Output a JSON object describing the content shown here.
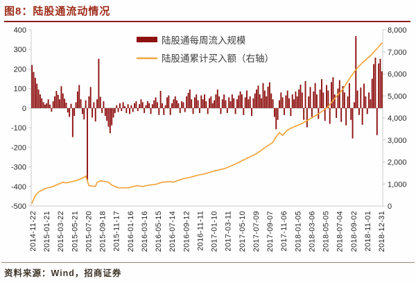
{
  "page": {
    "title": "图8：陆股通流动情况",
    "source_note": "资料来源：Wind，招商证券"
  },
  "legend": {
    "bar_label": "陆股通每周流入规模",
    "line_label": "陆股通累计买入额（右轴）"
  },
  "colors": {
    "bar": "#8e1010",
    "line": "#f2a43c",
    "title": "#9e2b18",
    "rule": "#8d1d12",
    "axis_text": "#262626",
    "axis_line": "#c9c9c9",
    "zero_line": "#a8a8a8",
    "legend_text": "#3d3d3d",
    "footer_text": "#3f3428"
  },
  "chart_data": {
    "type": "bar",
    "combo": "bar + line (dual axis)",
    "title": "陆股通流动情况",
    "left_axis": {
      "min": -500,
      "max": 400,
      "tick_step": 100,
      "tick_labels": [
        "400",
        "300",
        "200",
        "100",
        "0",
        "-100",
        "-200",
        "-300",
        "-400",
        "-500"
      ]
    },
    "right_axis": {
      "min": 0,
      "max": 8000,
      "tick_step": 1000,
      "tick_labels": [
        "8,000",
        "7,000",
        "6,000",
        "5,000",
        "4,000",
        "3,000",
        "2,000",
        "1,000",
        "0"
      ]
    },
    "x_tick_labels": [
      "2014-11-22",
      "2015-01-21",
      "2015-03-22",
      "2015-05-21",
      "2015-07-20",
      "2015-09-18",
      "2015-11-17",
      "2016-01-16",
      "2016-03-16",
      "2016-05-15",
      "2016-07-14",
      "2016-09-12",
      "2016-11-11",
      "2017-01-10",
      "2017-03-11",
      "2017-05-10",
      "2017-07-09",
      "2017-09-07",
      "2017-11-06",
      "2018-01-05",
      "2018-03-06",
      "2018-05-05",
      "2018-07-04",
      "2018-09-02",
      "2018-11-01",
      "2018-12-31"
    ],
    "series": [
      {
        "name": "陆股通每周流入规模",
        "type": "bar",
        "axis": "left",
        "weekly_values": [
          220,
          185,
          155,
          125,
          95,
          70,
          50,
          30,
          18,
          25,
          45,
          18,
          -18,
          35,
          60,
          88,
          68,
          45,
          112,
          75,
          48,
          28,
          -22,
          -45,
          22,
          -148,
          -40,
          30,
          85,
          118,
          45,
          -30,
          -58,
          40,
          -368,
          60,
          108,
          -48,
          30,
          -68,
          45,
          252,
          58,
          -25,
          35,
          -40,
          -65,
          -95,
          -128,
          -88,
          -48,
          -25,
          15,
          -20,
          25,
          -15,
          30,
          10,
          -25,
          20,
          -30,
          15,
          -20,
          25,
          35,
          -15,
          20,
          45,
          30,
          -25,
          15,
          35,
          25,
          -30,
          20,
          40,
          55,
          30,
          -35,
          88,
          25,
          -35,
          15,
          55,
          65,
          -35,
          25,
          45,
          60,
          40,
          25,
          -25,
          35,
          30,
          -20,
          60,
          78,
          95,
          45,
          -30,
          55,
          70,
          40,
          -25,
          65,
          45,
          70,
          35,
          -30,
          50,
          60,
          25,
          40,
          70,
          95,
          60,
          -30,
          45,
          70,
          40,
          -25,
          55,
          35,
          70,
          50,
          -30,
          45,
          65,
          85,
          70,
          -35,
          55,
          90,
          45,
          60,
          -40,
          50,
          75,
          95,
          115,
          70,
          50,
          128,
          90,
          60,
          110,
          132,
          75,
          45,
          -45,
          -108,
          -60,
          40,
          80,
          55,
          -35,
          65,
          90,
          50,
          -40,
          70,
          45,
          85,
          60,
          95,
          120,
          80,
          -60,
          138,
          -98,
          60,
          108,
          -45,
          85,
          128,
          70,
          -55,
          95,
          148,
          80,
          -65,
          118,
          90,
          -80,
          133,
          158,
          70,
          -50,
          100,
          143,
          -70,
          113,
          80,
          -88,
          60,
          128,
          -60,
          -155,
          30,
          368,
          90,
          -35,
          105,
          -85,
          125,
          60,
          -30,
          80,
          45,
          150,
          225,
          258,
          -138,
          228,
          252,
          188
        ]
      },
      {
        "name": "陆股通累计买入额（右轴）",
        "type": "line",
        "axis": "right",
        "anchor_points_week_value": [
          [
            0,
            127
          ],
          [
            2,
            476
          ],
          [
            4,
            635
          ],
          [
            8,
            790
          ],
          [
            13,
            890
          ],
          [
            17,
            1016
          ],
          [
            19,
            1079
          ],
          [
            21,
            1048
          ],
          [
            25,
            1111
          ],
          [
            28,
            1175
          ],
          [
            30,
            1238
          ],
          [
            32,
            1302
          ],
          [
            33,
            1365
          ],
          [
            35,
            921
          ],
          [
            39,
            889
          ],
          [
            40,
            1079
          ],
          [
            42,
            1143
          ],
          [
            45,
            1111
          ],
          [
            47,
            1079
          ],
          [
            49,
            952
          ],
          [
            51,
            889
          ],
          [
            53,
            825
          ],
          [
            59,
            825
          ],
          [
            64,
            921
          ],
          [
            68,
            889
          ],
          [
            72,
            952
          ],
          [
            76,
            984
          ],
          [
            80,
            1079
          ],
          [
            85,
            1111
          ],
          [
            87,
            1079
          ],
          [
            89,
            1143
          ],
          [
            93,
            1238
          ],
          [
            97,
            1302
          ],
          [
            102,
            1397
          ],
          [
            106,
            1460
          ],
          [
            112,
            1588
          ],
          [
            119,
            1715
          ],
          [
            125,
            1905
          ],
          [
            131,
            2127
          ],
          [
            138,
            2381
          ],
          [
            144,
            2699
          ],
          [
            148,
            2890
          ],
          [
            150,
            3143
          ],
          [
            152,
            3334
          ],
          [
            154,
            3207
          ],
          [
            157,
            3450
          ],
          [
            161,
            3600
          ],
          [
            165,
            3715
          ],
          [
            169,
            3874
          ],
          [
            174,
            4096
          ],
          [
            178,
            4286
          ],
          [
            182,
            4509
          ],
          [
            186,
            4890
          ],
          [
            191,
            5302
          ],
          [
            195,
            5779
          ],
          [
            199,
            6191
          ],
          [
            203,
            6509
          ],
          [
            208,
            6826
          ],
          [
            212,
            7144
          ],
          [
            215,
            7400
          ]
        ]
      }
    ],
    "grid": "off",
    "legend_position": "top-center-inside"
  }
}
